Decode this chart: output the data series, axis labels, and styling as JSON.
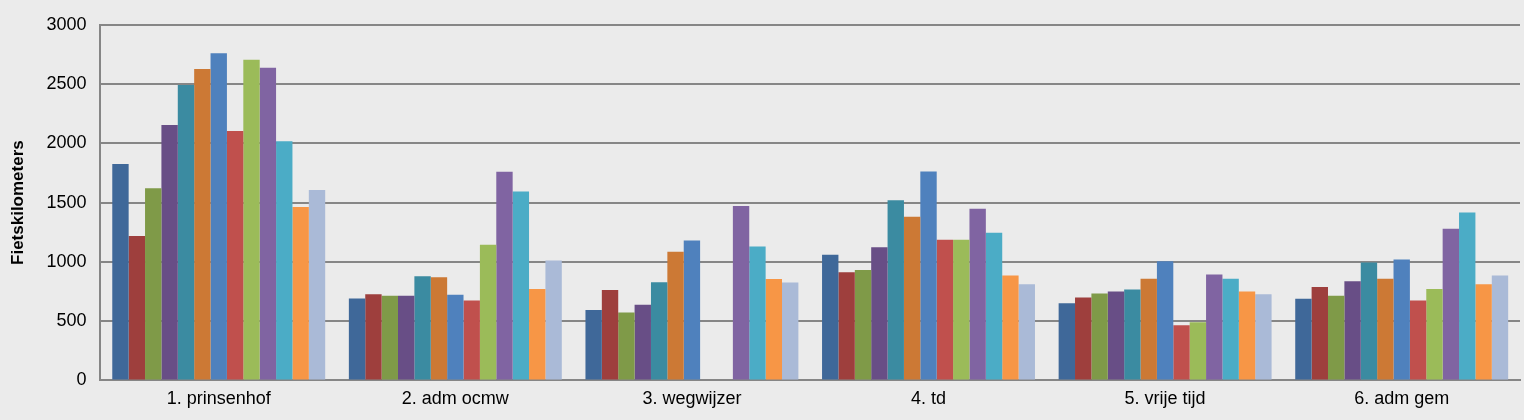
{
  "chart_data": {
    "type": "bar",
    "ylabel": "Fietskilometers",
    "categories": [
      "1. prinsenhof",
      "2. adm ocmw",
      "3. wegwijzer",
      "4. td",
      "5. vrije tijd",
      "6. adm gem"
    ],
    "series": [
      {
        "color": "#3f6899",
        "values": [
          1825,
          692,
          593,
          1059,
          651,
          689
        ]
      },
      {
        "color": "#9e3f3d",
        "values": [
          1218,
          726,
          763,
          912,
          700,
          789
        ]
      },
      {
        "color": "#7f9a48",
        "values": [
          1621,
          715,
          573,
          932,
          734,
          714
        ]
      },
      {
        "color": "#684e86",
        "values": [
          2155,
          715,
          638,
          1124,
          751,
          837
        ]
      },
      {
        "color": "#3b8ba1",
        "values": [
          2492,
          879,
          828,
          1520,
          766,
          994
        ]
      },
      {
        "color": "#cc7935",
        "values": [
          2627,
          870,
          1085,
          1381,
          857,
          857
        ]
      },
      {
        "color": "#4f81bd",
        "values": [
          2760,
          723,
          1181,
          1763,
          1006,
          1020
        ]
      },
      {
        "color": "#c0504d",
        "values": [
          2105,
          675,
          null,
          1186,
          466,
          674
        ]
      },
      {
        "color": "#9bbb59",
        "values": [
          2706,
          1144,
          null,
          1186,
          491,
          771
        ]
      },
      {
        "color": "#8064a2",
        "values": [
          2638,
          1760,
          1472,
          1449,
          894,
          1280
        ]
      },
      {
        "color": "#4bacc6",
        "values": [
          2017,
          1593,
          1130,
          1246,
          857,
          1417
        ]
      },
      {
        "color": "#f79646",
        "values": [
          1463,
          771,
          856,
          886,
          751,
          811
        ]
      },
      {
        "color": "#aabad7",
        "values": [
          1607,
          1011,
          825,
          811,
          726,
          886
        ]
      }
    ],
    "ylim": [
      0,
      3000
    ],
    "yticks": [
      0,
      500,
      1000,
      1500,
      2000,
      2500,
      3000
    ],
    "grid": "y",
    "legend": false
  }
}
